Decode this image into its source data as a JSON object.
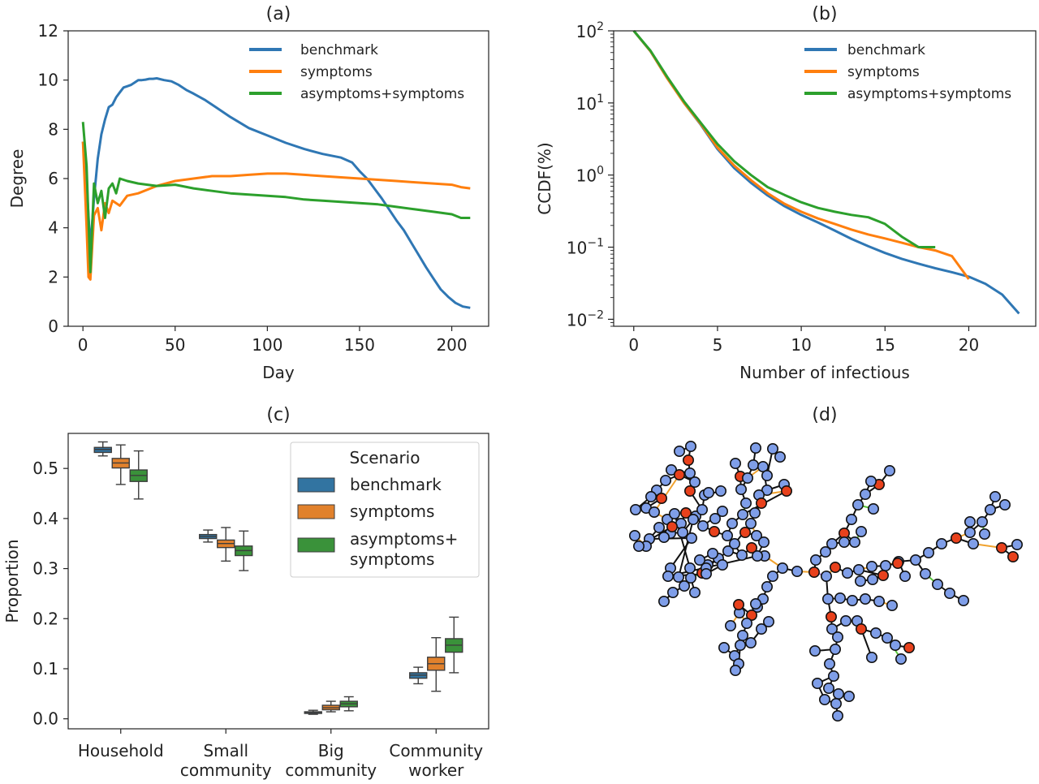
{
  "chart_data": [
    {
      "panel": "a",
      "type": "line",
      "title": "(a)",
      "xlabel": "Day",
      "ylabel": "Degree",
      "xlim": [
        -8,
        220
      ],
      "ylim": [
        0,
        12
      ],
      "xticks": [
        0,
        50,
        100,
        150,
        200
      ],
      "yticks": [
        0,
        2,
        4,
        6,
        8,
        10,
        12
      ],
      "legend_position": "top-right",
      "series": [
        {
          "name": "benchmark",
          "color": "#2f77b4",
          "x": [
            0,
            2,
            4,
            6,
            8,
            10,
            12,
            14,
            16,
            18,
            20,
            22,
            24,
            26,
            28,
            30,
            32,
            34,
            36,
            38,
            40,
            44,
            48,
            52,
            56,
            60,
            66,
            72,
            80,
            90,
            100,
            110,
            120,
            130,
            140,
            146,
            150,
            154,
            158,
            162,
            166,
            170,
            174,
            178,
            182,
            186,
            190,
            194,
            198,
            202,
            206,
            210
          ],
          "y": [
            7.5,
            5.8,
            3.2,
            5.2,
            6.8,
            7.8,
            8.4,
            8.9,
            9.0,
            9.3,
            9.5,
            9.7,
            9.75,
            9.8,
            9.9,
            10.0,
            10.0,
            10.02,
            10.05,
            10.05,
            10.07,
            10.0,
            9.95,
            9.8,
            9.6,
            9.45,
            9.2,
            8.9,
            8.5,
            8.05,
            7.75,
            7.45,
            7.2,
            7.0,
            6.85,
            6.65,
            6.3,
            6.0,
            5.6,
            5.2,
            4.75,
            4.3,
            3.9,
            3.4,
            2.9,
            2.4,
            1.95,
            1.5,
            1.2,
            0.95,
            0.8,
            0.75
          ]
        },
        {
          "name": "symptoms",
          "color": "#ff7f0e",
          "x": [
            0,
            2,
            3,
            4,
            6,
            8,
            10,
            12,
            14,
            16,
            20,
            24,
            30,
            40,
            50,
            60,
            70,
            80,
            90,
            100,
            110,
            120,
            130,
            140,
            150,
            160,
            170,
            180,
            190,
            200,
            205,
            210
          ],
          "y": [
            7.5,
            4.0,
            2.0,
            1.9,
            4.5,
            4.8,
            3.9,
            5.0,
            4.6,
            5.1,
            4.9,
            5.3,
            5.4,
            5.7,
            5.9,
            6.0,
            6.1,
            6.1,
            6.15,
            6.2,
            6.2,
            6.15,
            6.1,
            6.05,
            6.0,
            5.95,
            5.9,
            5.85,
            5.8,
            5.75,
            5.65,
            5.6
          ]
        },
        {
          "name": "asymptoms+symptoms",
          "color": "#2ca02c",
          "x": [
            0,
            2,
            4,
            6,
            8,
            10,
            12,
            14,
            16,
            18,
            20,
            24,
            30,
            40,
            50,
            60,
            70,
            80,
            90,
            100,
            110,
            120,
            130,
            140,
            150,
            160,
            170,
            180,
            190,
            200,
            205,
            210
          ],
          "y": [
            8.3,
            6.5,
            2.2,
            5.8,
            5.0,
            5.5,
            4.4,
            5.6,
            5.8,
            5.4,
            6.0,
            5.9,
            5.8,
            5.7,
            5.75,
            5.6,
            5.5,
            5.4,
            5.35,
            5.3,
            5.25,
            5.15,
            5.1,
            5.05,
            5.0,
            4.95,
            4.85,
            4.75,
            4.65,
            4.55,
            4.4,
            4.4
          ]
        }
      ]
    },
    {
      "panel": "b",
      "type": "line",
      "title": "(b)",
      "xlabel": "Number of infectious",
      "ylabel": "CCDF(%)",
      "yscale": "log",
      "xlim": [
        -1.2,
        24
      ],
      "ylim": [
        0.008,
        100
      ],
      "xticks": [
        0,
        5,
        10,
        15,
        20
      ],
      "yticks": [
        "10^-2",
        "10^-1",
        "10^0",
        "10^1",
        "10^2"
      ],
      "legend_position": "top-right",
      "series": [
        {
          "name": "benchmark",
          "color": "#2f77b4",
          "x": [
            0,
            1,
            2,
            3,
            4,
            5,
            6,
            7,
            8,
            9,
            10,
            11,
            12,
            13,
            14,
            15,
            16,
            17,
            18,
            19,
            20,
            21,
            22,
            23
          ],
          "y": [
            100,
            52,
            22,
            10,
            5.0,
            2.3,
            1.25,
            0.78,
            0.52,
            0.37,
            0.28,
            0.22,
            0.17,
            0.13,
            0.103,
            0.083,
            0.069,
            0.059,
            0.051,
            0.045,
            0.039,
            0.031,
            0.022,
            0.012
          ]
        },
        {
          "name": "symptoms",
          "color": "#ff7f0e",
          "x": [
            0,
            1,
            2,
            3,
            4,
            5,
            6,
            7,
            8,
            9,
            10,
            11,
            12,
            13,
            14,
            15,
            16,
            17,
            18,
            19,
            20
          ],
          "y": [
            100,
            52,
            22,
            10,
            5.1,
            2.4,
            1.35,
            0.85,
            0.56,
            0.4,
            0.31,
            0.25,
            0.21,
            0.175,
            0.15,
            0.132,
            0.115,
            0.1,
            0.09,
            0.075,
            0.036
          ]
        },
        {
          "name": "asymptoms+symptoms",
          "color": "#2ca02c",
          "x": [
            0,
            1,
            2,
            3,
            4,
            5,
            6,
            7,
            8,
            9,
            10,
            11,
            12,
            13,
            14,
            15,
            16,
            17,
            18
          ],
          "y": [
            100,
            53,
            23,
            10.5,
            5.3,
            2.7,
            1.55,
            1.0,
            0.68,
            0.53,
            0.42,
            0.35,
            0.31,
            0.28,
            0.26,
            0.21,
            0.14,
            0.1,
            0.1
          ]
        }
      ]
    },
    {
      "panel": "c",
      "type": "box",
      "title": "(c)",
      "xlabel": "",
      "ylabel": "Proportion",
      "ylim": [
        -0.02,
        0.57
      ],
      "yticks": [
        0.0,
        0.1,
        0.2,
        0.3,
        0.4,
        0.5
      ],
      "categories": [
        "Household",
        "Small\ncommunity",
        "Big\ncommunity",
        "Community\nworker"
      ],
      "legend_title": "Scenario",
      "legend_position": "top-right",
      "series": [
        {
          "name": "benchmark",
          "color": "#3274a1",
          "boxes": [
            {
              "min": 0.525,
              "q1": 0.532,
              "median": 0.538,
              "q3": 0.542,
              "max": 0.553
            },
            {
              "min": 0.353,
              "q1": 0.36,
              "median": 0.364,
              "q3": 0.368,
              "max": 0.377
            },
            {
              "min": 0.009,
              "q1": 0.011,
              "median": 0.013,
              "q3": 0.014,
              "max": 0.017
            },
            {
              "min": 0.07,
              "q1": 0.081,
              "median": 0.087,
              "q3": 0.092,
              "max": 0.103
            }
          ]
        },
        {
          "name": "symptoms",
          "color": "#e1812c",
          "boxes": [
            {
              "min": 0.468,
              "q1": 0.501,
              "median": 0.511,
              "q3": 0.52,
              "max": 0.547
            },
            {
              "min": 0.315,
              "q1": 0.342,
              "median": 0.35,
              "q3": 0.357,
              "max": 0.382
            },
            {
              "min": 0.014,
              "q1": 0.018,
              "median": 0.022,
              "q3": 0.027,
              "max": 0.035
            },
            {
              "min": 0.055,
              "q1": 0.097,
              "median": 0.11,
              "q3": 0.123,
              "max": 0.162
            }
          ]
        },
        {
          "name": "asymptoms+\nsymptoms",
          "color": "#3a923a",
          "boxes": [
            {
              "min": 0.439,
              "q1": 0.474,
              "median": 0.486,
              "q3": 0.497,
              "max": 0.535
            },
            {
              "min": 0.296,
              "q1": 0.326,
              "median": 0.336,
              "q3": 0.345,
              "max": 0.375
            },
            {
              "min": 0.016,
              "q1": 0.024,
              "median": 0.03,
              "q3": 0.035,
              "max": 0.044
            },
            {
              "min": 0.092,
              "q1": 0.133,
              "median": 0.147,
              "q3": 0.16,
              "max": 0.203
            }
          ]
        }
      ]
    },
    {
      "panel": "d",
      "type": "network",
      "title": "(d)",
      "node_colors": {
        "susceptible": "#7f9ee8",
        "infected": "#e8411c"
      },
      "edge_colors": [
        "#111111",
        "#f0a22e",
        "#58c43a",
        "#a97fd8"
      ]
    }
  ]
}
